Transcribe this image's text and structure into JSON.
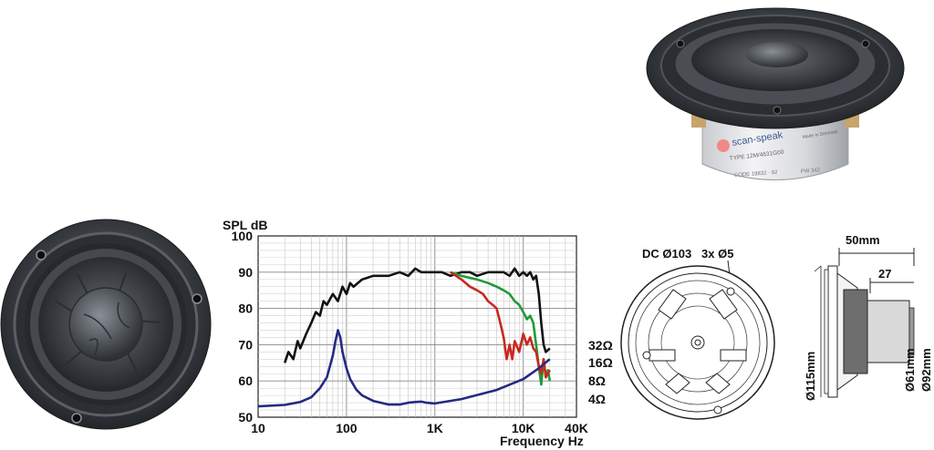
{
  "product": {
    "brand": "scan-speak",
    "type_line": "TYPE  12M/4631G00",
    "code_line": "CODE  18832 · 92",
    "made_in": "Made in Denmark",
    "pw_line": "PW  342"
  },
  "chart_data": {
    "type": "line",
    "ylabel": "SPL dB",
    "xlabel": "Frequency Hz",
    "x_scale": "log",
    "xlim": [
      10,
      40000
    ],
    "ylim": [
      50,
      100
    ],
    "grid": true,
    "x_ticks": [
      {
        "value": 10,
        "label": "10"
      },
      {
        "value": 100,
        "label": "100"
      },
      {
        "value": 1000,
        "label": "1K"
      },
      {
        "value": 10000,
        "label": "10K"
      },
      {
        "value": 40000,
        "label": "40K"
      }
    ],
    "y_ticks": [
      {
        "value": 50,
        "label": "50"
      },
      {
        "value": 60,
        "label": "60"
      },
      {
        "value": 70,
        "label": "70"
      },
      {
        "value": 80,
        "label": "80"
      },
      {
        "value": 90,
        "label": "90"
      },
      {
        "value": 100,
        "label": "100"
      }
    ],
    "impedance_labels": [
      "32Ω",
      "16Ω",
      "8Ω",
      "4Ω"
    ],
    "series": [
      {
        "color": "#111111",
        "x": [
          20,
          22,
          25,
          28,
          30,
          35,
          40,
          45,
          50,
          55,
          60,
          70,
          80,
          90,
          100,
          110,
          120,
          150,
          200,
          300,
          400,
          500,
          600,
          700,
          800,
          1000,
          1200,
          1500,
          2000,
          2500,
          3000,
          4000,
          5000,
          6000,
          7000,
          8000,
          9000,
          10000,
          11000,
          12000,
          13000,
          14000,
          15000,
          16000,
          17000,
          18000,
          20000
        ],
        "y": [
          65,
          68,
          66,
          71,
          69,
          73,
          76,
          79,
          78,
          82,
          81,
          84,
          82,
          86,
          84,
          87,
          86,
          88,
          89,
          89,
          90,
          89,
          91,
          90,
          90,
          90,
          90,
          89,
          90,
          90,
          89,
          90,
          90,
          90,
          89,
          91,
          89,
          90,
          89,
          90,
          88,
          89,
          84,
          76,
          70,
          68,
          69
        ]
      },
      {
        "color": "#1f9a3a",
        "x": [
          1500,
          2000,
          3000,
          4000,
          5000,
          6000,
          7000,
          8000,
          9000,
          10000,
          11000,
          12000,
          13000,
          14000,
          15000,
          16000,
          17000,
          18000,
          19000,
          20000
        ],
        "y": [
          90,
          89,
          88,
          87,
          86,
          85,
          84,
          82,
          81,
          79,
          77,
          78,
          76,
          70,
          64,
          59,
          66,
          61,
          63,
          60
        ]
      },
      {
        "color": "#c8281e",
        "x": [
          1500,
          2000,
          2500,
          3000,
          3500,
          4000,
          4500,
          5000,
          5500,
          6000,
          6500,
          7000,
          7500,
          8000,
          9000,
          10000,
          11000,
          12000,
          13000,
          14000,
          15000,
          16000,
          17000,
          18000,
          20000
        ],
        "y": [
          90,
          88,
          86,
          85,
          84,
          82,
          81,
          80,
          76,
          72,
          66,
          70,
          66,
          71,
          68,
          73,
          70,
          72,
          69,
          68,
          64,
          62,
          66,
          61,
          63
        ]
      },
      {
        "color": "#232a82",
        "x": [
          10,
          20,
          30,
          40,
          50,
          60,
          70,
          75,
          80,
          85,
          90,
          100,
          110,
          130,
          150,
          200,
          300,
          400,
          500,
          600,
          700,
          800,
          1000,
          2000,
          5000,
          10000,
          15000,
          20000
        ],
        "y": [
          53,
          53.4,
          54.2,
          55.5,
          58,
          61,
          67,
          71,
          74,
          72,
          68,
          63.5,
          60.5,
          57.5,
          56,
          54.5,
          53.5,
          53.5,
          54,
          54.2,
          54.3,
          54,
          53.8,
          55,
          57.5,
          60.5,
          63.5,
          66
        ]
      }
    ]
  },
  "dims": {
    "front_top": "DC Ø103   3x Ø5",
    "depth_total": "50mm",
    "depth_part": "27",
    "outer_diameter": "Ø115mm",
    "magnet_diameter": "Ø61mm",
    "frame_diameter": "Ø92mm"
  }
}
